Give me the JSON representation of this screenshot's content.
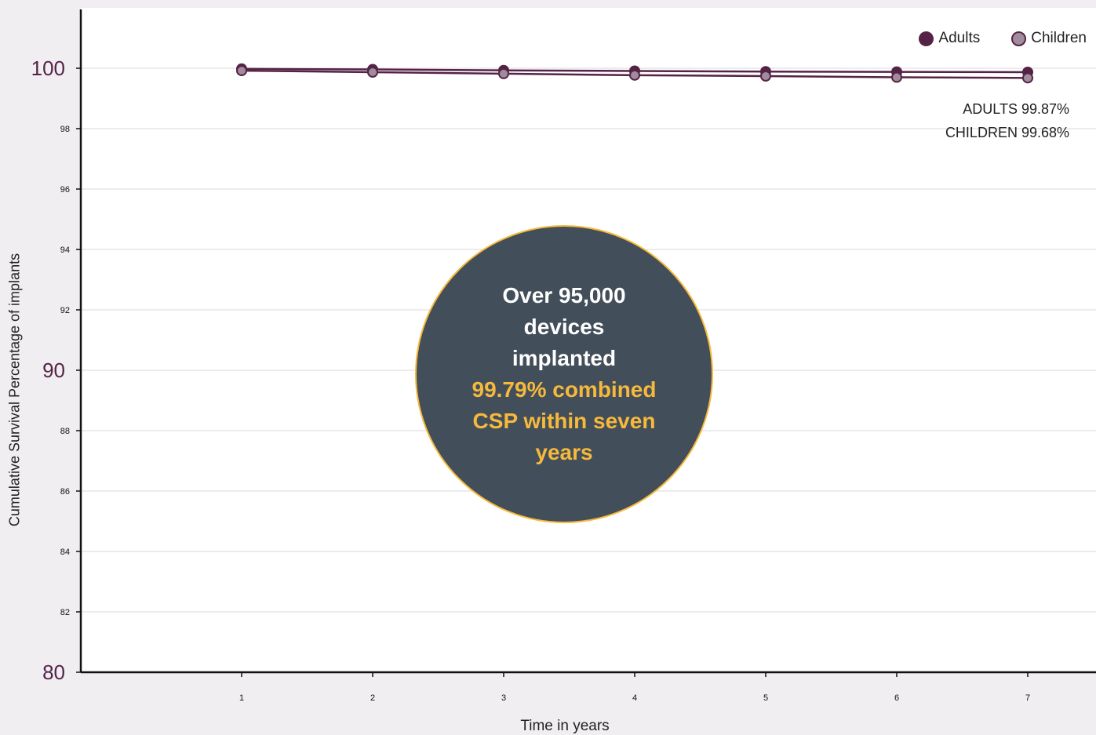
{
  "chart_data": {
    "type": "line",
    "xlabel": "Time in years",
    "ylabel": "Cumulative Survival Percentage of implants",
    "x": [
      1,
      2,
      3,
      4,
      5,
      6,
      7
    ],
    "ylim": [
      80,
      100
    ],
    "yticks": [
      80,
      82,
      84,
      86,
      88,
      90,
      92,
      94,
      96,
      98,
      100
    ],
    "ymajor": [
      80,
      90,
      100
    ],
    "grid": true,
    "legend_position": "top-right",
    "series": [
      {
        "name": "Adults",
        "values": [
          99.98,
          99.96,
          99.93,
          99.91,
          99.89,
          99.88,
          99.87
        ],
        "color": "#552346"
      },
      {
        "name": "Children",
        "values": [
          99.92,
          99.87,
          99.82,
          99.77,
          99.74,
          99.7,
          99.68
        ],
        "color": "#a08c9c"
      }
    ],
    "annotations": {
      "summary": [
        "ADULTS 99.87%",
        "CHILDREN 99.68%"
      ],
      "callout_white": "Over 95,000 devices implanted",
      "callout_accent": "99.79% combined CSP within seven years"
    }
  },
  "colors": {
    "background": "#f0eef1",
    "major_tick_text": "#552346",
    "callout_fill": "#434e5b",
    "callout_accent": "#f6b93b"
  }
}
